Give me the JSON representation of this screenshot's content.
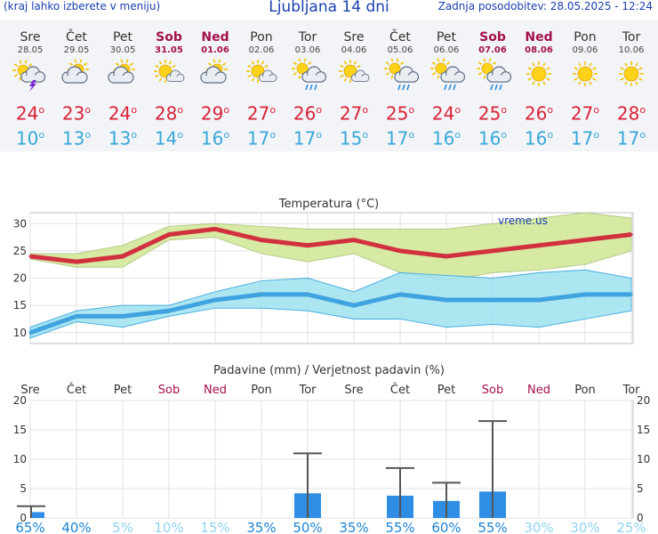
{
  "header": {
    "left_note": "(kraj lahko izberete v meniju)",
    "title": "Ljubljana 14 dni",
    "updated": "Zadnja posodobitev: 28.05.2025 - 12:24"
  },
  "days": [
    {
      "name": "Sre",
      "date": "28.05",
      "weekend": false,
      "icon": "sun-cloud-thunder-icon",
      "tmax": "24",
      "tmin": "10"
    },
    {
      "name": "Čet",
      "date": "29.05",
      "weekend": false,
      "icon": "sun-cloud-icon",
      "tmax": "23",
      "tmin": "13"
    },
    {
      "name": "Pet",
      "date": "30.05",
      "weekend": false,
      "icon": "sun-cloud-icon",
      "tmax": "24",
      "tmin": "13"
    },
    {
      "name": "Sob",
      "date": "31.05",
      "weekend": true,
      "icon": "sun-small-cloud-icon",
      "tmax": "28",
      "tmin": "14"
    },
    {
      "name": "Ned",
      "date": "01.06",
      "weekend": true,
      "icon": "sun-cloud-icon",
      "tmax": "29",
      "tmin": "16"
    },
    {
      "name": "Pon",
      "date": "02.06",
      "weekend": false,
      "icon": "sun-small-cloud-icon",
      "tmax": "27",
      "tmin": "17"
    },
    {
      "name": "Tor",
      "date": "03.06",
      "weekend": false,
      "icon": "sun-cloud-rain-icon",
      "tmax": "26",
      "tmin": "17"
    },
    {
      "name": "Sre",
      "date": "04.06",
      "weekend": false,
      "icon": "sun-small-cloud-icon",
      "tmax": "27",
      "tmin": "15"
    },
    {
      "name": "Čet",
      "date": "05.06",
      "weekend": false,
      "icon": "sun-cloud-rain-icon",
      "tmax": "25",
      "tmin": "17"
    },
    {
      "name": "Pet",
      "date": "06.06",
      "weekend": false,
      "icon": "sun-cloud-rain-icon",
      "tmax": "24",
      "tmin": "16"
    },
    {
      "name": "Sob",
      "date": "07.06",
      "weekend": true,
      "icon": "sun-cloud-rain-icon",
      "tmax": "25",
      "tmin": "16"
    },
    {
      "name": "Ned",
      "date": "08.06",
      "weekend": true,
      "icon": "sun-icon",
      "tmax": "26",
      "tmin": "16"
    },
    {
      "name": "Pon",
      "date": "09.06",
      "weekend": false,
      "icon": "sun-icon",
      "tmax": "27",
      "tmin": "17"
    },
    {
      "name": "Tor",
      "date": "10.06",
      "weekend": false,
      "icon": "sun-icon",
      "tmax": "28",
      "tmin": "17"
    }
  ],
  "colors": {
    "max_line": "#d1303f",
    "max_band": "#d3e89a",
    "min_line": "#3fa3e0",
    "min_band": "#a3e3ef",
    "bar": "#2f8de4",
    "weekend": "#a3104c",
    "prob": "#1e84d6",
    "prob_light": "#8fd3f0"
  },
  "chart_data": [
    {
      "type": "line",
      "title": "Temperatura (°C)",
      "watermark": "vreme.us",
      "ylim": [
        8,
        32
      ],
      "yticks": [
        10,
        15,
        20,
        25,
        30
      ],
      "grid": true,
      "series": [
        {
          "values": [
            24,
            23,
            24,
            28,
            29,
            27,
            26,
            27,
            25,
            24,
            25,
            26,
            27,
            28
          ],
          "band_low": [
            23.5,
            22,
            22,
            27,
            27.5,
            24.5,
            23,
            24.5,
            21,
            19.5,
            21,
            21.5,
            22.5,
            25
          ],
          "band_high": [
            24.5,
            24.5,
            26,
            29.5,
            30,
            29.5,
            29,
            29,
            29,
            29,
            30,
            31,
            32,
            31
          ]
        },
        {
          "values": [
            10,
            13,
            13,
            14,
            16,
            17,
            17,
            15,
            17,
            16,
            16,
            16,
            17,
            17
          ],
          "band_low": [
            9,
            12,
            11,
            13,
            14.5,
            14.5,
            14,
            12.5,
            12.5,
            11,
            11.5,
            11,
            12.5,
            14
          ],
          "band_high": [
            11,
            14,
            15,
            15,
            17.5,
            19.5,
            20,
            17.5,
            21,
            20.5,
            20,
            21,
            21.5,
            20
          ]
        }
      ]
    },
    {
      "type": "bar",
      "title": "Padavine (mm) / Verjetnost padavin (%)",
      "categories": [
        "Sre",
        "Čet",
        "Pet",
        "Sob",
        "Ned",
        "Pon",
        "Tor",
        "Sre",
        "Čet",
        "Pet",
        "Sob",
        "Ned",
        "Pon",
        "Tor"
      ],
      "weekend": [
        false,
        false,
        false,
        true,
        true,
        false,
        false,
        false,
        false,
        false,
        true,
        true,
        false,
        false
      ],
      "values": [
        1,
        0,
        0,
        0,
        0,
        0,
        4.2,
        0,
        3.8,
        2.9,
        4.5,
        0,
        0,
        0
      ],
      "error_high": [
        2,
        0,
        0,
        0,
        0,
        0,
        11,
        0,
        8.5,
        6,
        16.5,
        0,
        0,
        0
      ],
      "probability": [
        "65%",
        "40%",
        "5%",
        "10%",
        "15%",
        "35%",
        "50%",
        "35%",
        "55%",
        "60%",
        "55%",
        "30%",
        "30%",
        "25%"
      ],
      "prob_strong": [
        true,
        true,
        false,
        false,
        false,
        true,
        true,
        true,
        true,
        true,
        true,
        false,
        false,
        false
      ],
      "ylim": [
        0,
        20
      ],
      "yticks": [
        0,
        5,
        10,
        15,
        20
      ]
    }
  ]
}
